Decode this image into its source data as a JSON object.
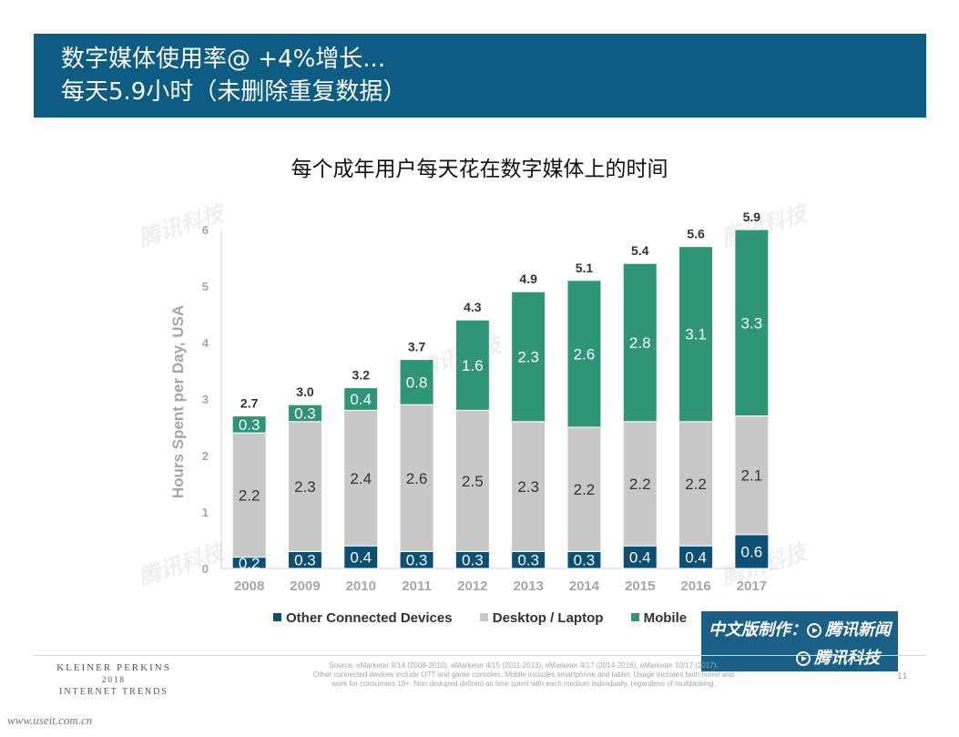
{
  "header": {
    "line1": "数字媒体使用率@ +4%增长...",
    "line2": "每天5.9小时（未删除重复数据）"
  },
  "chart_data": {
    "type": "bar",
    "stacked": true,
    "title": "每个成年用户每天花在数字媒体上的时间",
    "xlabel": "",
    "ylabel": "Hours Spent per Day, USA",
    "ylim": [
      0,
      6
    ],
    "yticks": [
      0,
      1,
      2,
      3,
      4,
      5,
      6
    ],
    "grid": false,
    "legend_position": "bottom",
    "categories": [
      "2008",
      "2009",
      "2010",
      "2011",
      "2012",
      "2013",
      "2014",
      "2015",
      "2016",
      "2017"
    ],
    "series": [
      {
        "name": "Other Connected Devices",
        "color": "#0c4f75",
        "values": [
          0.2,
          0.3,
          0.4,
          0.3,
          0.3,
          0.3,
          0.3,
          0.4,
          0.4,
          0.6
        ]
      },
      {
        "name": "Desktop / Laptop",
        "color": "#c8c8c8",
        "values": [
          2.2,
          2.3,
          2.4,
          2.6,
          2.5,
          2.3,
          2.2,
          2.2,
          2.2,
          2.1
        ]
      },
      {
        "name": "Mobile",
        "color": "#2e9676",
        "values": [
          0.3,
          0.3,
          0.4,
          0.8,
          1.6,
          2.3,
          2.6,
          2.8,
          3.1,
          3.3
        ]
      }
    ],
    "totals": [
      "2.7",
      "3.0",
      "3.2",
      "3.7",
      "4.3",
      "4.9",
      "5.1",
      "5.4",
      "5.6",
      "5.9"
    ]
  },
  "credit": {
    "prefix": "中文版制作：",
    "org1": "腾讯新闻",
    "org2": "腾讯科技",
    "icon": "tencent-play-logo-icon"
  },
  "watermark_text": "腾讯科技",
  "footer": {
    "brand_line1": "KLEINER PERKINS",
    "brand_line2": "2018",
    "brand_line3": "INTERNET TRENDS",
    "source_line1": "Source: eMarketer 9/14 (2008-2010), eMarketer 4/15 (2011-2013), eMarketer 4/17 (2014-2016), eMarketer 10/17 (2017).",
    "source_line2": "Other connected devices include OTT and game consoles. Mobile includes smartphone and tablet. Usage includes both home and",
    "source_line3": "work for consumers 18+. Non deduped defined as time spent with each medium individually, regardless of multitasking.",
    "page_number": "11",
    "site_url": "www.useit.com.cn"
  }
}
